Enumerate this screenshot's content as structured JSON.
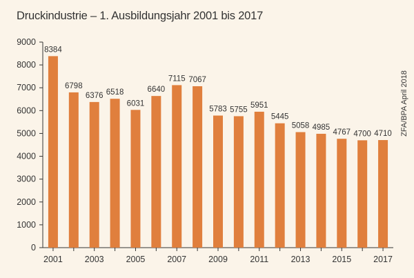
{
  "chart_data": {
    "type": "bar",
    "title": "Druckindustrie – 1. Ausbildungsjahr 2001 bis 2017",
    "source": "ZFA/BPA April 2018",
    "categories": [
      "2001",
      "2002",
      "2003",
      "2004",
      "2005",
      "2006",
      "2007",
      "2008",
      "2009",
      "2010",
      "2011",
      "2012",
      "2013",
      "2014",
      "2015",
      "2016",
      "2017"
    ],
    "x_tick_labels": [
      "2001",
      "",
      "2003",
      "",
      "2005",
      "",
      "2007",
      "",
      "2009",
      "",
      "2011",
      "",
      "2013",
      "",
      "2015",
      "",
      "2017"
    ],
    "values": [
      8384,
      6798,
      6376,
      6518,
      6031,
      6640,
      7115,
      7067,
      5783,
      5755,
      5951,
      5445,
      5058,
      4985,
      4767,
      4700,
      4710
    ],
    "y_ticks": [
      0,
      1000,
      2000,
      3000,
      4000,
      5000,
      6000,
      7000,
      8000,
      9000
    ],
    "ylim": [
      0,
      9000
    ],
    "xlabel": "",
    "ylabel": "",
    "grid": false,
    "legend": "none"
  },
  "colors": {
    "bar": "#e07f3d",
    "axis": "#333333",
    "background": "#fbf4e9"
  }
}
